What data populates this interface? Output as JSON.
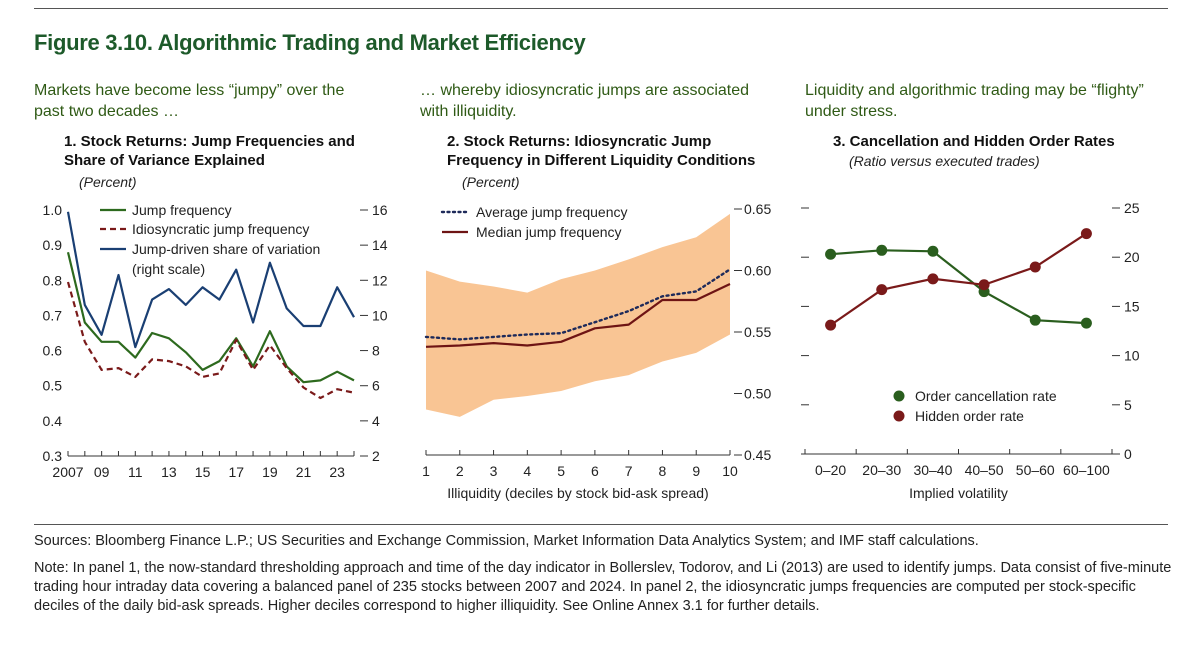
{
  "figure_title": "Figure 3.10. Algorithmic Trading and Market Efficiency",
  "panels": {
    "p1": {
      "subhead": "Markets have become less “jumpy” over the past two decades …",
      "title": "1. Stock Returns: Jump Frequencies and Share of Variance Explained",
      "unit": "(Percent)"
    },
    "p2": {
      "subhead": "… whereby idiosyncratic jumps are associated with illiquidity.",
      "title": "2. Stock Returns: Idiosyncratic Jump Frequency in Different Liquidity Conditions",
      "unit": "(Percent)"
    },
    "p3": {
      "subhead": "Liquidity and algorithmic trading may be “flighty” under stress.",
      "title": "3. Cancellation and Hidden Order Rates",
      "unit": "(Ratio versus executed trades)"
    }
  },
  "colors": {
    "title_green": "#1d5a2a",
    "jump_green": "#2d6a1e",
    "idio_red": "#7a1a1a",
    "share_blue": "#1a3f73",
    "band_orange": "#f9c594",
    "avg_navy": "#1e2a5a",
    "median_red": "#6e1414",
    "cancel_green": "#2a5e1e",
    "hidden_red": "#7a1a1a"
  },
  "chart_data": [
    {
      "type": "line",
      "title": "1. Stock Returns: Jump Frequencies and Share of Variance Explained",
      "unit": "(Percent)",
      "x": [
        2007,
        2008,
        2009,
        2010,
        2011,
        2012,
        2013,
        2014,
        2015,
        2016,
        2017,
        2018,
        2019,
        2020,
        2021,
        2022,
        2023,
        2024
      ],
      "x_tick_labels": [
        "2007",
        "09",
        "11",
        "13",
        "15",
        "17",
        "19",
        "21",
        "23"
      ],
      "ylim_left": [
        0.3,
        1.0
      ],
      "yticks_left": [
        "0.3",
        "0.4",
        "0.5",
        "0.6",
        "0.7",
        "0.8",
        "0.9",
        "1.0"
      ],
      "ylim_right": [
        2,
        16
      ],
      "yticks_right": [
        "2",
        "4",
        "6",
        "8",
        "10",
        "12",
        "14",
        "16"
      ],
      "series": [
        {
          "name": "Jump frequency",
          "axis": "left",
          "style": "solid",
          "values": [
            0.88,
            0.68,
            0.625,
            0.625,
            0.58,
            0.65,
            0.635,
            0.595,
            0.545,
            0.57,
            0.635,
            0.555,
            0.655,
            0.555,
            0.51,
            0.515,
            0.54,
            0.515
          ]
        },
        {
          "name": "Idiosyncratic jump frequency",
          "axis": "left",
          "style": "dashed",
          "values": [
            0.795,
            0.625,
            0.545,
            0.55,
            0.525,
            0.575,
            0.57,
            0.555,
            0.525,
            0.535,
            0.63,
            0.545,
            0.615,
            0.55,
            0.495,
            0.465,
            0.49,
            0.48
          ]
        },
        {
          "name": "Jump-driven share of variation (right scale)",
          "axis": "right",
          "style": "solid",
          "values": [
            15.9,
            10.6,
            8.9,
            12.3,
            8.2,
            10.9,
            11.5,
            10.6,
            11.6,
            10.9,
            12.6,
            9.6,
            13.0,
            10.4,
            9.4,
            9.4,
            11.6,
            9.9
          ]
        }
      ],
      "legend": [
        "Jump frequency",
        "Idiosyncratic jump frequency",
        "Jump-driven share of variation",
        "(right scale)"
      ]
    },
    {
      "type": "area",
      "title": "2. Stock Returns: Idiosyncratic Jump Frequency in Different Liquidity Conditions",
      "unit": "(Percent)",
      "x": [
        1,
        2,
        3,
        4,
        5,
        6,
        7,
        8,
        9,
        10
      ],
      "x_tick_labels": [
        "1",
        "2",
        "3",
        "4",
        "5",
        "6",
        "7",
        "8",
        "9",
        "10"
      ],
      "xlabel": "Illiquidity (deciles by stock bid-ask spread)",
      "ylim": [
        0.45,
        0.65
      ],
      "yticks": [
        "0.45",
        "0.50",
        "0.55",
        "0.60",
        "0.65"
      ],
      "band": {
        "name": "Range",
        "lower": [
          0.487,
          0.481,
          0.495,
          0.498,
          0.502,
          0.51,
          0.515,
          0.526,
          0.533,
          0.548
        ],
        "upper": [
          0.6,
          0.591,
          0.587,
          0.582,
          0.593,
          0.6,
          0.609,
          0.619,
          0.627,
          0.646
        ]
      },
      "series": [
        {
          "name": "Average jump frequency",
          "style": "dotted",
          "values": [
            0.546,
            0.544,
            0.546,
            0.548,
            0.549,
            0.558,
            0.567,
            0.579,
            0.583,
            0.601
          ]
        },
        {
          "name": "Median jump frequency",
          "style": "solid",
          "values": [
            0.538,
            0.539,
            0.541,
            0.539,
            0.542,
            0.553,
            0.556,
            0.576,
            0.576,
            0.589
          ]
        }
      ]
    },
    {
      "type": "line",
      "title": "3. Cancellation and Hidden Order Rates",
      "unit": "(Ratio versus executed trades)",
      "categories": [
        "0–20",
        "20–30",
        "30–40",
        "40–50",
        "50–60",
        "60–100"
      ],
      "xlabel": "Implied volatility",
      "ylim_right": [
        0,
        25
      ],
      "yticks_right": [
        "0",
        "5",
        "10",
        "15",
        "20",
        "25"
      ],
      "series": [
        {
          "name": "Order cancellation rate",
          "values": [
            20.3,
            20.7,
            20.6,
            16.5,
            13.6,
            13.3
          ]
        },
        {
          "name": "Hidden order rate",
          "values": [
            13.1,
            16.7,
            17.8,
            17.2,
            19.0,
            22.4
          ]
        }
      ]
    }
  ],
  "sources": "Sources: Bloomberg Finance L.P.; US Securities and Exchange Commission, Market Information Data Analytics System; and IMF staff calculations.",
  "note": "Note: In panel 1, the now-standard thresholding approach and time of the day indicator in Bollerslev, Todorov, and Li (2013) are used to identify jumps. Data consist of five-minute trading hour intraday data covering a balanced panel of 235 stocks between 2007 and 2024. In panel 2, the idiosyncratic jumps frequencies are computed per stock-specific deciles of the daily bid-ask spreads. Higher deciles correspond to higher illiquidity. See Online Annex 3.1 for further details."
}
